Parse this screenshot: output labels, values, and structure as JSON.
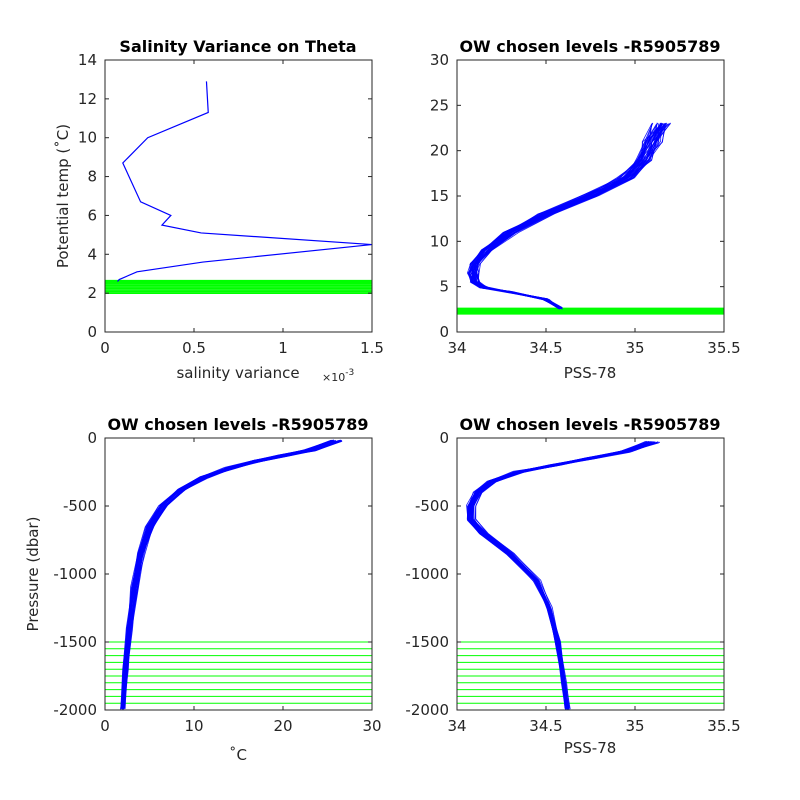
{
  "chart_data": [
    {
      "type": "line",
      "title": "Salinity Variance on Theta",
      "xlabel": "salinity variance",
      "x_multiplier": "×10",
      "x_multiplier_exp": "-3",
      "ylabel": "Potential temp (˚C)",
      "xlim": [
        0,
        1.5
      ],
      "ylim": [
        0,
        14
      ],
      "xticks": [
        0,
        0.5,
        1,
        1.5
      ],
      "xtick_labels": [
        "0",
        "0.5",
        "1",
        "1.5"
      ],
      "yticks": [
        0,
        2,
        4,
        6,
        8,
        10,
        12,
        14
      ],
      "series_color": "#0000ff",
      "highlight_color": "#00ff00",
      "series": [
        {
          "x": [
            0.57,
            0.58,
            0.24,
            0.1,
            0.2,
            0.37,
            0.32,
            0.54,
            1.5,
            0.55,
            0.18,
            0.08,
            0.07
          ],
          "y": [
            12.9,
            11.3,
            10.0,
            8.7,
            6.7,
            6.0,
            5.5,
            5.1,
            4.5,
            3.6,
            3.1,
            2.7,
            2.6
          ]
        }
      ],
      "highlight_levels": [
        2.0,
        2.08,
        2.16,
        2.24,
        2.32,
        2.4,
        2.48,
        2.56,
        2.64
      ]
    },
    {
      "type": "line",
      "title": "OW chosen levels -R5905789",
      "xlabel": "PSS-78",
      "ylabel": "",
      "xlim": [
        34,
        35.5
      ],
      "ylim": [
        0,
        30
      ],
      "xticks": [
        34,
        34.5,
        35,
        35.5
      ],
      "yticks": [
        0,
        5,
        10,
        15,
        20,
        25,
        30
      ],
      "series_color": "#0000ff",
      "highlight_color": "#00ff00",
      "profile": {
        "x": [
          34.58,
          34.5,
          34.3,
          34.15,
          34.1,
          34.09,
          34.1,
          34.16,
          34.3,
          34.5,
          34.75,
          34.95,
          35.05,
          35.1,
          35.15
        ],
        "y": [
          2.6,
          3.6,
          4.4,
          4.9,
          5.5,
          6.5,
          7.5,
          9.0,
          11.0,
          13.0,
          15.0,
          17.0,
          19.0,
          21.0,
          23.0
        ]
      },
      "profile_count": 40,
      "highlight_levels": [
        2.0,
        2.1,
        2.2,
        2.3,
        2.4,
        2.5,
        2.6
      ]
    },
    {
      "type": "line",
      "title": "OW chosen levels -R5905789",
      "xlabel": "˚C",
      "ylabel": "Pressure (dbar)",
      "xlim": [
        0,
        30
      ],
      "ylim": [
        -2000,
        0
      ],
      "xticks": [
        0,
        10,
        20,
        30
      ],
      "yticks": [
        -2000,
        -1500,
        -1000,
        -500,
        0
      ],
      "series_color": "#0000ff",
      "highlight_color": "#00ff00",
      "profile": {
        "x": [
          2.0,
          2.3,
          2.7,
          3.3,
          4.0,
          5.0,
          6.5,
          8.5,
          11.0,
          14.0,
          17.0,
          20.0,
          23.0,
          26.0
        ],
        "y": [
          -1990,
          -1700,
          -1400,
          -1100,
          -850,
          -650,
          -500,
          -380,
          -290,
          -220,
          -170,
          -130,
          -90,
          -20
        ]
      },
      "profile_count": 40,
      "highlight_levels": [
        -1500,
        -1550,
        -1600,
        -1650,
        -1700,
        -1750,
        -1800,
        -1850,
        -1900,
        -1950,
        -2000
      ]
    },
    {
      "type": "line",
      "title": "OW chosen levels -R5905789",
      "xlabel": "PSS-78",
      "ylabel": "",
      "xlim": [
        34,
        35.5
      ],
      "ylim": [
        -2000,
        0
      ],
      "xticks": [
        34,
        34.5,
        35,
        35.5
      ],
      "yticks": [
        -2000,
        -1500,
        -1000,
        -500,
        0
      ],
      "series_color": "#0000ff",
      "highlight_color": "#00ff00",
      "profile": {
        "x": [
          34.62,
          34.6,
          34.57,
          34.52,
          34.45,
          34.3,
          34.15,
          34.08,
          34.08,
          34.12,
          34.2,
          34.35,
          34.55,
          34.75,
          34.95,
          35.1
        ],
        "y": [
          -1990,
          -1800,
          -1500,
          -1250,
          -1050,
          -850,
          -700,
          -600,
          -500,
          -400,
          -320,
          -250,
          -200,
          -150,
          -100,
          -30
        ]
      },
      "profile_count": 40,
      "highlight_levels": [
        -1500,
        -1550,
        -1600,
        -1650,
        -1700,
        -1750,
        -1800,
        -1850,
        -1900,
        -1950,
        -2000
      ]
    }
  ]
}
